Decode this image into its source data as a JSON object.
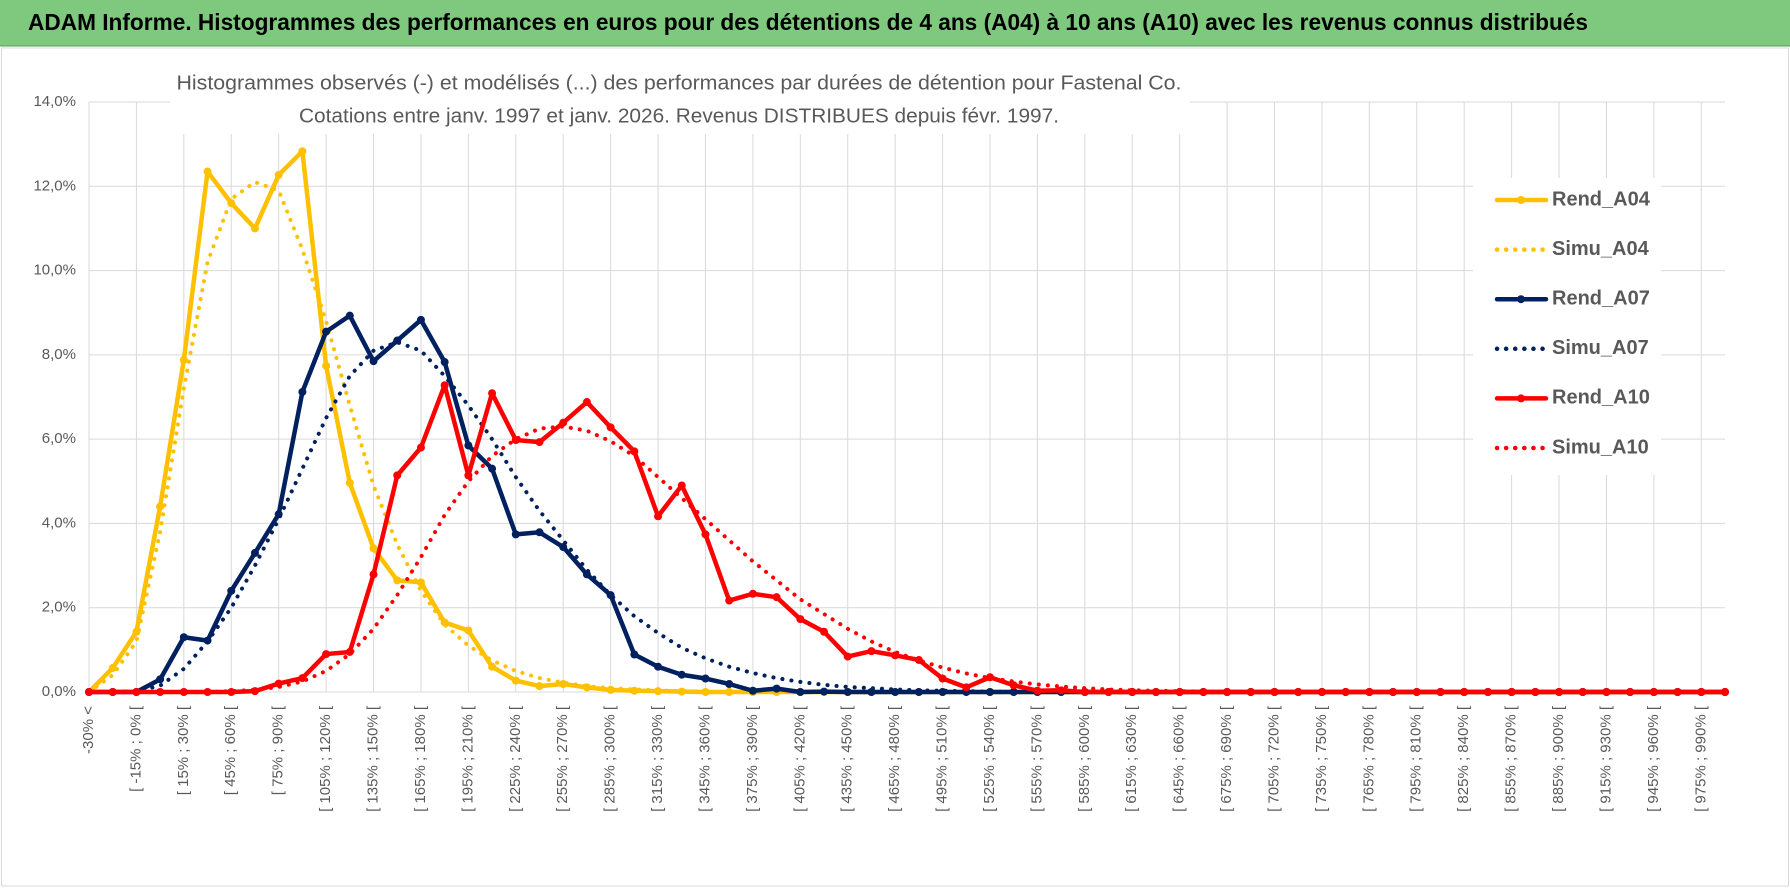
{
  "header": "ADAM Informe. Histogrammes des performances en euros pour des détentions de 4 ans (A04) à 10 ans (A10) avec les revenus connus distribués",
  "chart_data": {
    "type": "line",
    "title": "Histogrammes observés (-) et modélisés (...) des performances par durées de détention pour Fastenal Co.",
    "subtitle": "Cotations entre janv. 1997 et janv. 2026. Revenus DISTRIBUES depuis févr. 1997.",
    "categories": [
      "-30% <",
      null,
      "[ -15% ; 0% [",
      null,
      "[ 15% ; 30% [",
      null,
      "[ 45% ; 60% [",
      null,
      "[ 75% ; 90% [",
      null,
      "[ 105% ; 120% [",
      null,
      "[ 135% ; 150% [",
      null,
      "[ 165% ; 180% [",
      null,
      "[ 195% ; 210% [",
      null,
      "[ 225% ; 240% [",
      null,
      "[ 255% ; 270% [",
      null,
      "[ 285% ; 300% [",
      null,
      "[ 315% ; 330% [",
      null,
      "[ 345% ; 360% [",
      null,
      "[ 375% ; 390% [",
      null,
      "[ 405% ; 420% [",
      null,
      "[ 435% ; 450% [",
      null,
      "[ 465% ; 480% [",
      null,
      "[ 495% ; 510% [",
      null,
      "[ 525% ; 540% [",
      null,
      "[ 555% ; 570% [",
      null,
      "[ 585% ; 600% [",
      null,
      "[ 615% ; 630% [",
      null,
      "[ 645% ; 660% [",
      null,
      "[ 675% ; 690% [",
      null,
      "[ 705% ; 720% [",
      null,
      "[ 735% ; 750% [",
      null,
      "[ 765% ; 780% [",
      null,
      "[ 795% ; 810% [",
      null,
      "[ 825% ; 840% [",
      null,
      "[ 855% ; 870% [",
      null,
      "[ 885% ; 900% [",
      null,
      "[ 915% ; 930% [",
      null,
      "[ 945% ; 960% [",
      null,
      "[ 975% ; 990% [",
      null
    ],
    "series": [
      {
        "name": "Rend_A04",
        "color": "#FFC000",
        "dash": "solid",
        "marker": true,
        "values": [
          0,
          0.57,
          1.43,
          4.4,
          7.88,
          12.35,
          11.6,
          11.0,
          12.27,
          12.83,
          7.74,
          4.96,
          3.41,
          2.65,
          2.6,
          1.65,
          1.46,
          0.6,
          0.27,
          0.14,
          0.19,
          0.11,
          0.05,
          0.03,
          0.02,
          0.01,
          0,
          0,
          0,
          0,
          0,
          0,
          0,
          0,
          0,
          0,
          0,
          0,
          0,
          0,
          0,
          0,
          0,
          0,
          0,
          0,
          0,
          0,
          0,
          0,
          0,
          0,
          0,
          0,
          0,
          0,
          0,
          0,
          0,
          0,
          0,
          0,
          0,
          0,
          0,
          0,
          0,
          0,
          0,
          0
        ]
      },
      {
        "name": "Simu_A04",
        "color": "#FFC000",
        "dash": "dotted",
        "marker": false,
        "values": [
          0,
          0.4,
          1.2,
          3.8,
          7.2,
          10.2,
          11.7,
          12.1,
          11.9,
          10.5,
          8.8,
          6.8,
          4.9,
          3.5,
          2.4,
          1.6,
          1.1,
          0.75,
          0.5,
          0.33,
          0.22,
          0.14,
          0.09,
          0.06,
          0.04,
          0.02,
          0.01,
          0,
          0,
          0,
          0,
          0,
          0,
          0,
          0,
          0,
          0,
          0,
          0,
          0,
          0,
          0,
          0,
          0,
          0,
          0,
          0,
          0,
          0,
          0,
          0,
          0,
          0,
          0,
          0,
          0,
          0,
          0,
          0,
          0,
          0,
          0,
          0,
          0,
          0,
          0,
          0,
          0,
          0,
          0
        ]
      },
      {
        "name": "Rend_A07",
        "color": "#002060",
        "dash": "solid",
        "marker": true,
        "values": [
          0,
          0,
          0,
          0.3,
          1.3,
          1.22,
          2.4,
          3.3,
          4.22,
          7.12,
          8.55,
          8.93,
          7.85,
          8.34,
          8.83,
          7.83,
          5.85,
          5.3,
          3.74,
          3.79,
          3.44,
          2.79,
          2.3,
          0.89,
          0.6,
          0.41,
          0.32,
          0.19,
          0.03,
          0.08,
          0,
          0.01,
          0,
          0,
          0,
          0,
          0,
          0,
          0,
          0,
          0,
          0,
          0,
          0,
          0,
          0,
          0,
          0,
          0,
          0,
          0,
          0,
          0,
          0,
          0,
          0,
          0,
          0,
          0,
          0,
          0,
          0,
          0,
          0,
          0,
          0,
          0,
          0,
          0,
          0
        ]
      },
      {
        "name": "Simu_A07",
        "color": "#002060",
        "dash": "dotted",
        "marker": false,
        "values": [
          0,
          0,
          0.02,
          0.15,
          0.55,
          1.2,
          2.0,
          3.0,
          4.1,
          5.3,
          6.5,
          7.5,
          8.1,
          8.3,
          8.1,
          7.5,
          6.8,
          6.0,
          5.1,
          4.3,
          3.6,
          2.9,
          2.3,
          1.8,
          1.4,
          1.05,
          0.8,
          0.6,
          0.45,
          0.33,
          0.24,
          0.17,
          0.12,
          0.09,
          0.06,
          0.04,
          0.03,
          0.02,
          0.01,
          0,
          0,
          0,
          0,
          0,
          0,
          0,
          0,
          0,
          0,
          0,
          0,
          0,
          0,
          0,
          0,
          0,
          0,
          0,
          0,
          0,
          0,
          0,
          0,
          0,
          0,
          0,
          0,
          0,
          0,
          0
        ]
      },
      {
        "name": "Rend_A10",
        "color": "#FF0000",
        "dash": "solid",
        "marker": true,
        "values": [
          0,
          0,
          0,
          0,
          0,
          0,
          0,
          0.02,
          0.2,
          0.33,
          0.9,
          0.95,
          2.79,
          5.14,
          5.8,
          7.28,
          5.14,
          7.09,
          5.98,
          5.93,
          6.39,
          6.88,
          6.28,
          5.71,
          4.17,
          4.9,
          3.74,
          2.17,
          2.33,
          2.25,
          1.73,
          1.43,
          0.84,
          0.97,
          0.87,
          0.76,
          0.32,
          0.11,
          0.35,
          0.16,
          0.03,
          0.04,
          0,
          0,
          0,
          0,
          0,
          0,
          0,
          0,
          0,
          0,
          0,
          0,
          0,
          0,
          0,
          0,
          0,
          0,
          0,
          0,
          0,
          0,
          0,
          0,
          0,
          0,
          0,
          0
        ]
      },
      {
        "name": "Simu_A10",
        "color": "#FF0000",
        "dash": "dotted",
        "marker": false,
        "values": [
          0,
          0,
          0,
          0,
          0,
          0,
          0.02,
          0.05,
          0.12,
          0.25,
          0.5,
          0.9,
          1.5,
          2.3,
          3.2,
          4.2,
          5.0,
          5.6,
          6.0,
          6.25,
          6.3,
          6.2,
          5.95,
          5.6,
          5.1,
          4.6,
          4.1,
          3.6,
          3.1,
          2.65,
          2.2,
          1.85,
          1.5,
          1.2,
          0.95,
          0.75,
          0.58,
          0.44,
          0.33,
          0.25,
          0.18,
          0.13,
          0.09,
          0.06,
          0.04,
          0.03,
          0.02,
          0.01,
          0,
          0,
          0,
          0,
          0,
          0,
          0,
          0,
          0,
          0,
          0,
          0,
          0,
          0,
          0,
          0,
          0,
          0,
          0,
          0,
          0,
          0
        ]
      }
    ],
    "ylim": [
      0,
      14
    ],
    "yticks": [
      {
        "value": 0,
        "label": "0,0%"
      },
      {
        "value": 2,
        "label": "2,0%"
      },
      {
        "value": 4,
        "label": "4,0%"
      },
      {
        "value": 6,
        "label": "6,0%"
      },
      {
        "value": 8,
        "label": "8,0%"
      },
      {
        "value": 10,
        "label": "10,0%"
      },
      {
        "value": 12,
        "label": "12,0%"
      },
      {
        "value": 14,
        "label": "14,0%"
      }
    ],
    "grid": true,
    "legend": "right"
  }
}
